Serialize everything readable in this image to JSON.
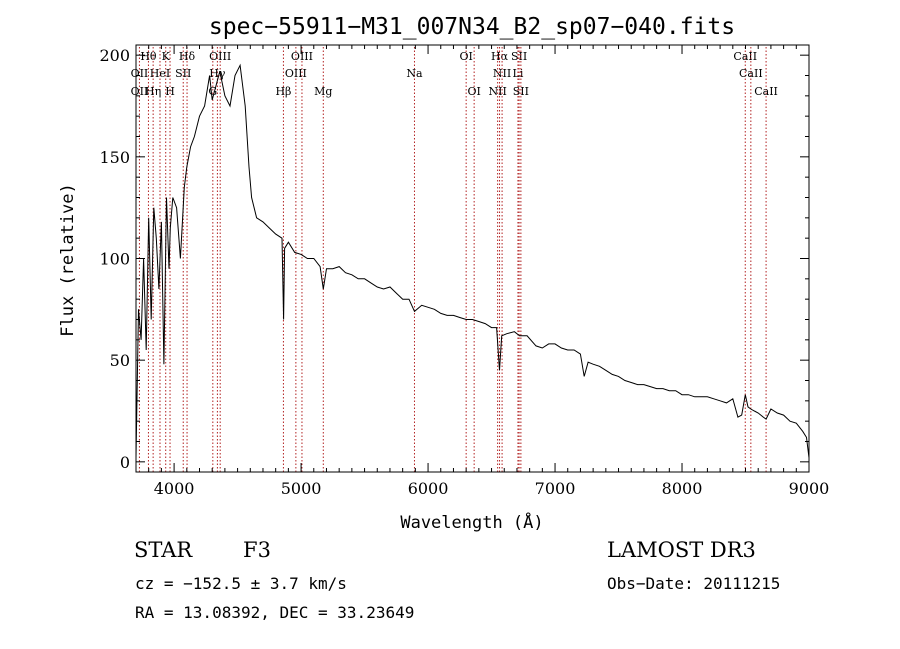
{
  "chart_data": {
    "type": "line",
    "title": "spec−55911−M31_007N34_B2_sp07−040.fits",
    "xlabel": "Wavelength (Å)",
    "ylabel": "Flux (relative)",
    "xlim": [
      3700,
      9000
    ],
    "ylim": [
      -5,
      205
    ],
    "xticks": [
      4000,
      5000,
      6000,
      7000,
      8000,
      9000
    ],
    "xtick_labels": [
      "4000",
      "5000",
      "6000",
      "7000",
      "8000",
      "9000"
    ],
    "yticks": [
      0,
      50,
      100,
      150,
      200
    ],
    "ytick_labels": [
      "0",
      "50",
      "100",
      "150",
      "200"
    ],
    "grid": false,
    "series": [
      {
        "name": "flux",
        "x": [
          3700,
          3720,
          3740,
          3760,
          3780,
          3800,
          3820,
          3840,
          3860,
          3880,
          3900,
          3920,
          3940,
          3960,
          3970,
          3990,
          4020,
          4050,
          4080,
          4100,
          4130,
          4160,
          4200,
          4240,
          4280,
          4300,
          4330,
          4360,
          4400,
          4440,
          4480,
          4520,
          4560,
          4590,
          4610,
          4650,
          4700,
          4750,
          4800,
          4850,
          4862,
          4870,
          4900,
          4950,
          5000,
          5050,
          5100,
          5150,
          5175,
          5200,
          5250,
          5300,
          5350,
          5400,
          5450,
          5500,
          5550,
          5600,
          5650,
          5700,
          5750,
          5800,
          5850,
          5893,
          5950,
          6000,
          6050,
          6100,
          6150,
          6200,
          6250,
          6300,
          6350,
          6400,
          6450,
          6500,
          6540,
          6563,
          6580,
          6620,
          6680,
          6720,
          6780,
          6850,
          6900,
          6950,
          7000,
          7050,
          7100,
          7150,
          7200,
          7230,
          7260,
          7300,
          7350,
          7400,
          7450,
          7500,
          7550,
          7600,
          7650,
          7700,
          7750,
          7800,
          7850,
          7900,
          7950,
          8000,
          8050,
          8100,
          8150,
          8200,
          8250,
          8300,
          8350,
          8400,
          8440,
          8470,
          8498,
          8520,
          8542,
          8570,
          8600,
          8640,
          8662,
          8700,
          8750,
          8800,
          8850,
          8900,
          8950,
          8980,
          9000
        ],
        "values": [
          2,
          75,
          60,
          100,
          55,
          120,
          70,
          125,
          110,
          85,
          118,
          48,
          130,
          95,
          115,
          130,
          125,
          100,
          135,
          145,
          155,
          160,
          170,
          175,
          190,
          178,
          185,
          192,
          180,
          175,
          190,
          195,
          175,
          145,
          130,
          120,
          118,
          115,
          112,
          110,
          70,
          105,
          108,
          103,
          102,
          100,
          100,
          96,
          85,
          95,
          95,
          96,
          93,
          92,
          90,
          90,
          88,
          86,
          85,
          86,
          83,
          80,
          80,
          74,
          77,
          76,
          75,
          73,
          72,
          72,
          71,
          70,
          70,
          69,
          68,
          66,
          66,
          45,
          62,
          63,
          64,
          62,
          62,
          57,
          56,
          58,
          58,
          56,
          55,
          55,
          53,
          42,
          49,
          48,
          47,
          45,
          43,
          42,
          40,
          39,
          38,
          38,
          37,
          36,
          36,
          35,
          35,
          33,
          33,
          32,
          32,
          32,
          31,
          30,
          29,
          31,
          22,
          23,
          33,
          27,
          26,
          25,
          24,
          22,
          21,
          26,
          24,
          23,
          20,
          19,
          15,
          12,
          2
        ]
      }
    ],
    "line_markers": [
      {
        "name": "Hθ",
        "wavelength": 3798,
        "row": 0
      },
      {
        "name": "K",
        "wavelength": 3934,
        "row": 0
      },
      {
        "name": "Hδ",
        "wavelength": 4102,
        "row": 0
      },
      {
        "name": "OIII",
        "wavelength": 4363,
        "row": 0
      },
      {
        "name": "OIII",
        "wavelength": 5007,
        "row": 0
      },
      {
        "name": "OI",
        "wavelength": 6300,
        "row": 0
      },
      {
        "name": "Hα",
        "wavelength": 6563,
        "row": 0
      },
      {
        "name": "SII",
        "wavelength": 6717,
        "row": 0
      },
      {
        "name": "CaII",
        "wavelength": 8498,
        "row": 0
      },
      {
        "name": "OII",
        "wavelength": 3727,
        "row": 1
      },
      {
        "name": "HeI",
        "wavelength": 3889,
        "row": 1
      },
      {
        "name": "SII",
        "wavelength": 4072,
        "row": 1
      },
      {
        "name": "Hγ",
        "wavelength": 4341,
        "row": 1
      },
      {
        "name": "OIII",
        "wavelength": 4959,
        "row": 1
      },
      {
        "name": "NII",
        "wavelength": 6583,
        "row": 1
      },
      {
        "name": "Li",
        "wavelength": 6708,
        "row": 1
      },
      {
        "name": "CaII",
        "wavelength": 8542,
        "row": 1
      },
      {
        "name": "OII",
        "wavelength": 3727,
        "row": 2
      },
      {
        "name": "Hη",
        "wavelength": 3835,
        "row": 2
      },
      {
        "name": "H",
        "wavelength": 3968,
        "row": 2
      },
      {
        "name": "G",
        "wavelength": 4305,
        "row": 2
      },
      {
        "name": "Hβ",
        "wavelength": 4861,
        "row": 2
      },
      {
        "name": "Mg",
        "wavelength": 5175,
        "row": 2
      },
      {
        "name": "Na",
        "wavelength": 5893,
        "row": 1
      },
      {
        "name": "OI",
        "wavelength": 6363,
        "row": 2
      },
      {
        "name": "NII",
        "wavelength": 6548,
        "row": 2
      },
      {
        "name": "SII",
        "wavelength": 6731,
        "row": 2
      },
      {
        "name": "CaII",
        "wavelength": 8662,
        "row": 2
      }
    ]
  },
  "info": {
    "object_class": "STAR",
    "subclass": "F3",
    "survey": "LAMOST DR3",
    "cz": "cz = −152.5 ± 3.7 km/s",
    "obs_date": "Obs−Date: 20111215",
    "coords": "RA =  13.08392, DEC =  33.23649"
  },
  "colors": {
    "spectrum": "#000000",
    "marker_line": "#b22222",
    "background": "#ffffff"
  }
}
